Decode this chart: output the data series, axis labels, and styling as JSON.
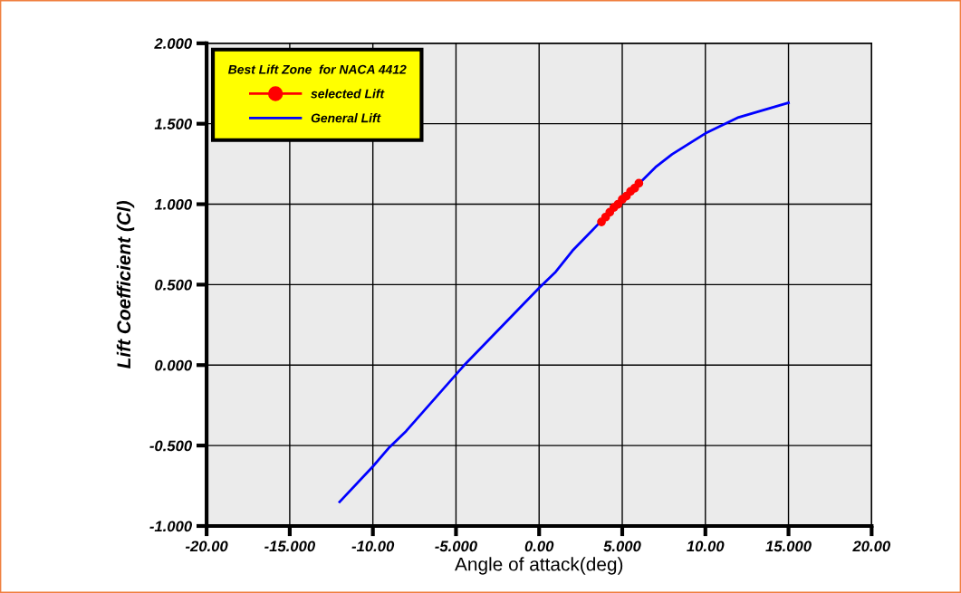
{
  "chart_data": {
    "type": "line",
    "xlabel": "Angle of attack(deg)",
    "ylabel": "Lift Coefficient (Cl)",
    "legend_title": "Best Lift Zone  for NACA 4412",
    "series": [
      {
        "name": "selected Lift",
        "type": "scatter",
        "color": "#ff0000",
        "marker": "circle",
        "x": [
          3.75,
          4.0,
          4.25,
          4.5,
          4.75,
          5.0,
          5.25,
          5.5,
          5.75,
          6.0
        ],
        "values": [
          0.89,
          0.92,
          0.95,
          0.98,
          1.0,
          1.03,
          1.05,
          1.08,
          1.1,
          1.13
        ]
      },
      {
        "name": "General Lift",
        "color": "#0000ff",
        "x": [
          -12,
          -10,
          -9,
          -8,
          -4.5,
          0,
          1,
          2,
          3.5,
          7,
          8,
          10,
          12,
          14,
          15
        ],
        "values": [
          -0.85,
          -0.63,
          -0.51,
          -0.41,
          0,
          0.48,
          0.58,
          0.71,
          0.87,
          1.23,
          1.31,
          1.44,
          1.54,
          1.6,
          1.63
        ]
      }
    ],
    "xlim": [
      -20,
      20
    ],
    "ylim": [
      -1,
      2
    ],
    "xticks": [
      {
        "value": -20,
        "label": "-20.00"
      },
      {
        "value": -15,
        "label": "-15.000"
      },
      {
        "value": -10,
        "label": "-10.00"
      },
      {
        "value": -5,
        "label": "-5.000"
      },
      {
        "value": 0,
        "label": "0.00"
      },
      {
        "value": 5,
        "label": "5.000"
      },
      {
        "value": 10,
        "label": "10.00"
      },
      {
        "value": 15,
        "label": "15.000"
      },
      {
        "value": 20,
        "label": "20.00"
      }
    ],
    "yticks": [
      {
        "value": -1,
        "label": "-1.000"
      },
      {
        "value": -0.5,
        "label": "-0.500"
      },
      {
        "value": 0,
        "label": "0.000"
      },
      {
        "value": 0.5,
        "label": "0.500"
      },
      {
        "value": 1,
        "label": "1.000"
      },
      {
        "value": 1.5,
        "label": "1.500"
      },
      {
        "value": 2,
        "label": "2.000"
      }
    ],
    "grid": true,
    "legend": "top left"
  }
}
